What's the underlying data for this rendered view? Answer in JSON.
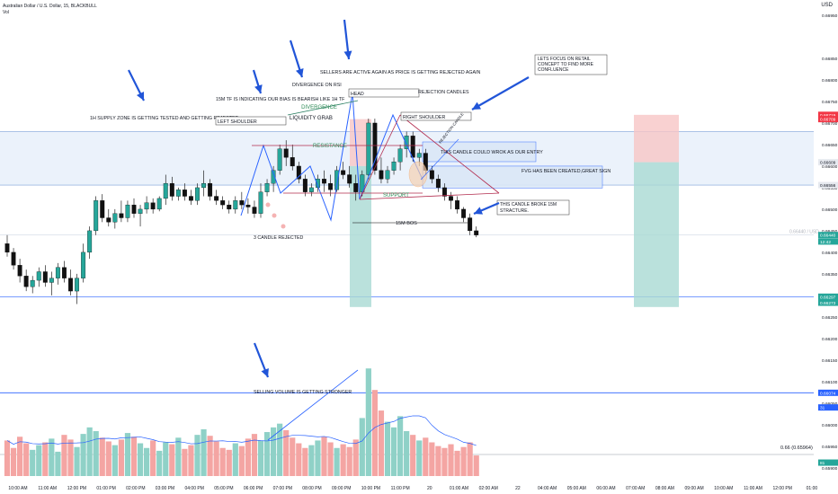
{
  "header": {
    "symbol_title": "Australian Dollar / U.S. Dollar, 15, BLACKBULL",
    "volume_label": "Vol"
  },
  "toolbar": {
    "currency": "USD"
  },
  "colors": {
    "up": "#26a69a",
    "down": "#ef5350",
    "zone_blue": "#dbe7f7",
    "line_blue": "#2962ff",
    "pattern_red": "#b22b4d",
    "annotation_blue": "#2155d8",
    "green_label": "#2e8b57"
  },
  "price_axis": {
    "ticks": [
      "0.66950",
      "0.66850",
      "0.66800",
      "0.66750",
      "0.66700",
      "0.66650",
      "0.66600",
      "0.66550",
      "0.66500",
      "0.66450",
      "0.66400",
      "0.66350",
      "0.66300",
      "0.66250",
      "0.66200",
      "0.66150",
      "0.66100",
      "0.66050",
      "0.66000",
      "0.65950",
      "0.65900"
    ],
    "badges": [
      {
        "text": "0.66719",
        "color": "#f23645"
      },
      {
        "text": "0.66709",
        "color": "#f23645"
      },
      {
        "text": "0.66609",
        "color": "#e6e9ef",
        "fg": "#131722"
      },
      {
        "text": "0.66556",
        "color": "#e6e9ef",
        "fg": "#131722"
      },
      {
        "text": "0.66440",
        "color": "#26a69a"
      },
      {
        "text": "12:42",
        "color": "#26a69a"
      },
      {
        "text": "0.66297",
        "color": "#26a69a"
      },
      {
        "text": "0.66273",
        "color": "#26a69a"
      },
      {
        "text": "0.66074",
        "color": "#2962ff"
      },
      {
        "text": "31",
        "color": "#2962ff"
      },
      {
        "text": "81",
        "color": "#26a69a"
      }
    ],
    "last_price_line_label": "0.66440 / USD"
  },
  "time_axis": {
    "labels": [
      "10:00 AM",
      "11:00 AM",
      "12:00 PM",
      "01:00 PM",
      "02:00 PM",
      "03:00 PM",
      "04:00 PM",
      "05:00 PM",
      "06:00 PM",
      "07:00 PM",
      "08:00 PM",
      "09:00 PM",
      "10:00 PM",
      "11:00 PM",
      "20",
      "01:00 AM",
      "02:00 AM",
      "22",
      "04:00 AM",
      "05:00 AM",
      "06:00 AM",
      "07:00 AM",
      "08:00 AM",
      "09:00 AM",
      "10:00 AM",
      "11:00 AM",
      "12:00 PM",
      "01:00"
    ]
  },
  "annotations": {
    "supply_zone": "1H SUPPLY ZONE IS GETTING TESTED AND GETTING REJECTED",
    "bias": "15M TF IS INDICATING OUR BIAS IS BEARISH LIKE 1H TF",
    "divergence_rsi": "DIVERGENCE ON RSI",
    "sellers_active": "SELLERS ARE ACTIVE AGAIN AS PRICE IS GETTING REJECTED AGAIN",
    "retail": "LETS FOCUS ON RETAIL CONCEPT TO FIND MORE CONFLUENCE",
    "head": "HEAD",
    "rejection_candles": "REJECTION CANDLES",
    "left_shoulder": "LEFT SHOULDER",
    "right_shoulder": "RIGHT SHOULDER",
    "divergence": "DIVERGENCE",
    "liquidity_grab": "LIQUIDITY GRAB",
    "resistance": "RESISTANCE",
    "support": "SUPPORT",
    "entry_candle": "THIS CANDLE COULD WROK AS OUR ENTRY",
    "fvg": "FVG HAS BEEN CREATED,GREAT SIGN",
    "broke_structure": "THIS CANDLE BROKE 15M STRACTURE.",
    "bos": "15M BOS",
    "candle_rejected": "3 CANDLE REJECTED",
    "selling_volume": "SELLING VOLUME IS GETTING STRONGER",
    "rejection_small": "REJECTION CANDLE",
    "ma_label": "0.66 (0.65964)"
  },
  "chart_data": {
    "type": "candlestick",
    "title": "Australian Dollar / U.S. Dollar, 15, BLACKBULL",
    "ylim": [
      0.65885,
      0.66975
    ],
    "candles": [
      [
        0.6642,
        0.6644,
        0.6639,
        0.664
      ],
      [
        0.664,
        0.6641,
        0.6636,
        0.6637
      ],
      [
        0.6637,
        0.66385,
        0.6633,
        0.66345
      ],
      [
        0.66345,
        0.6636,
        0.6631,
        0.6632
      ],
      [
        0.6632,
        0.66345,
        0.66305,
        0.66335
      ],
      [
        0.66335,
        0.66365,
        0.6632,
        0.66355
      ],
      [
        0.66355,
        0.6637,
        0.6632,
        0.6633
      ],
      [
        0.6633,
        0.66355,
        0.663,
        0.6634
      ],
      [
        0.6634,
        0.66375,
        0.66325,
        0.66365
      ],
      [
        0.66365,
        0.6638,
        0.6633,
        0.6634
      ],
      [
        0.6634,
        0.6636,
        0.663,
        0.6631
      ],
      [
        0.6631,
        0.6635,
        0.6628,
        0.6634
      ],
      [
        0.6634,
        0.6642,
        0.6633,
        0.664
      ],
      [
        0.664,
        0.6646,
        0.66385,
        0.6645
      ],
      [
        0.6645,
        0.6653,
        0.6644,
        0.6652
      ],
      [
        0.6652,
        0.66535,
        0.6647,
        0.6648
      ],
      [
        0.6648,
        0.665,
        0.6646,
        0.6647
      ],
      [
        0.6647,
        0.665,
        0.66455,
        0.6649
      ],
      [
        0.6649,
        0.6652,
        0.6647,
        0.6648
      ],
      [
        0.6648,
        0.6652,
        0.6647,
        0.6651
      ],
      [
        0.6651,
        0.66525,
        0.6648,
        0.6649
      ],
      [
        0.6649,
        0.6651,
        0.6646,
        0.665
      ],
      [
        0.665,
        0.6653,
        0.6649,
        0.66515
      ],
      [
        0.66515,
        0.66525,
        0.6649,
        0.665
      ],
      [
        0.665,
        0.6653,
        0.66495,
        0.66525
      ],
      [
        0.66525,
        0.6658,
        0.6651,
        0.6656
      ],
      [
        0.6656,
        0.66575,
        0.6652,
        0.6653
      ],
      [
        0.6653,
        0.6655,
        0.6652,
        0.66545
      ],
      [
        0.66545,
        0.6656,
        0.6652,
        0.6653
      ],
      [
        0.6653,
        0.66545,
        0.6651,
        0.6652
      ],
      [
        0.6652,
        0.6656,
        0.6651,
        0.6655
      ],
      [
        0.6655,
        0.6659,
        0.6653,
        0.6656
      ],
      [
        0.6656,
        0.6657,
        0.6652,
        0.6653
      ],
      [
        0.6653,
        0.66545,
        0.6651,
        0.6652
      ],
      [
        0.6652,
        0.6653,
        0.665,
        0.6651
      ],
      [
        0.6651,
        0.6652,
        0.6649,
        0.665
      ],
      [
        0.665,
        0.6653,
        0.6649,
        0.6652
      ],
      [
        0.6652,
        0.6654,
        0.665,
        0.6651
      ],
      [
        0.6651,
        0.66525,
        0.6649,
        0.66505
      ],
      [
        0.66505,
        0.6652,
        0.6648,
        0.6649
      ],
      [
        0.6649,
        0.6656,
        0.6648,
        0.6654
      ],
      [
        0.6654,
        0.6657,
        0.6653,
        0.6656
      ],
      [
        0.6656,
        0.666,
        0.6654,
        0.6659
      ],
      [
        0.6659,
        0.6665,
        0.6658,
        0.6664
      ],
      [
        0.6664,
        0.6666,
        0.666,
        0.6662
      ],
      [
        0.6662,
        0.6665,
        0.6659,
        0.666
      ],
      [
        0.666,
        0.6661,
        0.6656,
        0.6657
      ],
      [
        0.6657,
        0.6658,
        0.6653,
        0.6654
      ],
      [
        0.6654,
        0.6656,
        0.6653,
        0.6655
      ],
      [
        0.6655,
        0.6658,
        0.6654,
        0.6657
      ],
      [
        0.6657,
        0.6659,
        0.6654,
        0.6656
      ],
      [
        0.6656,
        0.6658,
        0.6653,
        0.66545
      ],
      [
        0.66545,
        0.666,
        0.6654,
        0.6659
      ],
      [
        0.6659,
        0.6661,
        0.6657,
        0.6658
      ],
      [
        0.6658,
        0.666,
        0.6655,
        0.6656
      ],
      [
        0.6656,
        0.6658,
        0.6652,
        0.6654
      ],
      [
        0.6654,
        0.6659,
        0.6653,
        0.6658
      ],
      [
        0.6658,
        0.6671,
        0.6657,
        0.667
      ],
      [
        0.667,
        0.6671,
        0.6658,
        0.6659
      ],
      [
        0.6659,
        0.6662,
        0.6656,
        0.6657
      ],
      [
        0.6657,
        0.666,
        0.6656,
        0.6659
      ],
      [
        0.6659,
        0.6662,
        0.6658,
        0.6661
      ],
      [
        0.6661,
        0.6665,
        0.6659,
        0.6664
      ],
      [
        0.6664,
        0.6668,
        0.6662,
        0.6667
      ],
      [
        0.6667,
        0.6668,
        0.6661,
        0.6662
      ],
      [
        0.6662,
        0.6664,
        0.666,
        0.6663
      ],
      [
        0.6663,
        0.6664,
        0.6658,
        0.6659
      ],
      [
        0.6659,
        0.666,
        0.6656,
        0.6657
      ],
      [
        0.6657,
        0.6658,
        0.6654,
        0.6655
      ],
      [
        0.6655,
        0.6656,
        0.6652,
        0.6653
      ],
      [
        0.6653,
        0.6654,
        0.665,
        0.6652
      ],
      [
        0.6652,
        0.6653,
        0.6649,
        0.665
      ],
      [
        0.665,
        0.66505,
        0.6647,
        0.6648
      ],
      [
        0.6648,
        0.6649,
        0.6644,
        0.6645
      ],
      [
        0.6645,
        0.6646,
        0.66435,
        0.6644
      ]
    ],
    "volume": [
      38,
      30,
      42,
      35,
      28,
      33,
      36,
      40,
      26,
      44,
      39,
      31,
      45,
      52,
      48,
      41,
      37,
      33,
      39,
      46,
      42,
      35,
      30,
      38,
      27,
      36,
      34,
      41,
      29,
      33,
      44,
      50,
      43,
      37,
      30,
      28,
      35,
      32,
      40,
      45,
      38,
      47,
      52,
      56,
      49,
      41,
      35,
      30,
      33,
      38,
      42,
      36,
      30,
      34,
      31,
      39,
      62,
      115,
      92,
      70,
      58,
      52,
      64,
      48,
      44,
      38,
      41,
      36,
      32,
      30,
      34,
      27,
      31,
      36,
      22
    ],
    "volume_ma": {
      "name": "0.66 (0.65964)"
    }
  }
}
